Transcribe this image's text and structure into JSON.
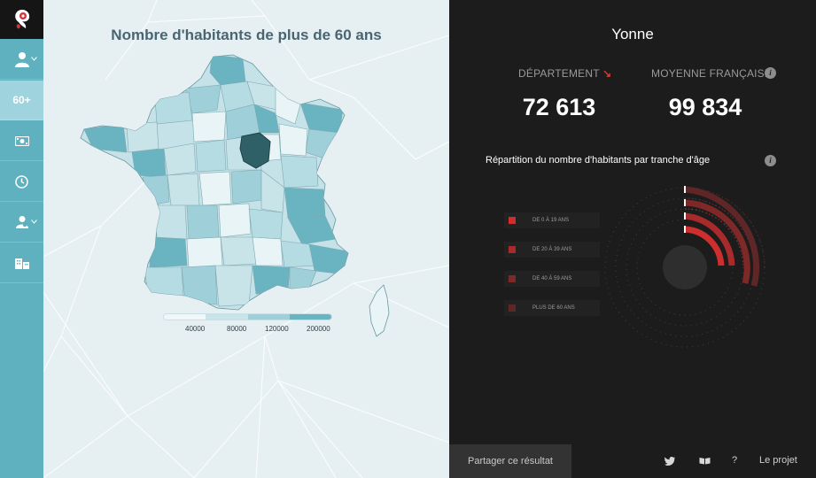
{
  "sidebar": {
    "items": [
      {
        "icon": "user-icon"
      },
      {
        "label": "60+"
      },
      {
        "icon": "money-icon"
      },
      {
        "icon": "clock-icon"
      },
      {
        "icon": "user-group-icon"
      },
      {
        "icon": "building-icon"
      }
    ]
  },
  "map": {
    "title": "Nombre d'habitants de plus de 60 ans",
    "legend": {
      "labels": [
        "40000",
        "80000",
        "120000",
        "200000"
      ],
      "colors": [
        "#f1f7f8",
        "#c9e4e8",
        "#9fd0d9",
        "#6ab3c1"
      ]
    },
    "highlight_color": "#2f6067"
  },
  "details": {
    "region": "Yonne",
    "dept_label": "DÉPARTEMENT",
    "dept_arrow": "↘",
    "avg_label": "MOYENNE FRANÇAISE",
    "dept_value": "72 613",
    "avg_value": "99 834",
    "dist_title": "Répartition du nombre d'habitants par tranche d'âge",
    "age_groups": [
      {
        "label": "DE 0 À 19 ANS",
        "color": "#cf2e2e"
      },
      {
        "label": "DE 20 À 39 ANS",
        "color": "#a82a2a"
      },
      {
        "label": "DE 40 À 59 ANS",
        "color": "#7e2828"
      },
      {
        "label": "PLUS DE 60 ANS",
        "color": "#5e2626"
      }
    ]
  },
  "footer": {
    "share": "Partager ce résultat",
    "help": "?",
    "project": "Le projet"
  }
}
